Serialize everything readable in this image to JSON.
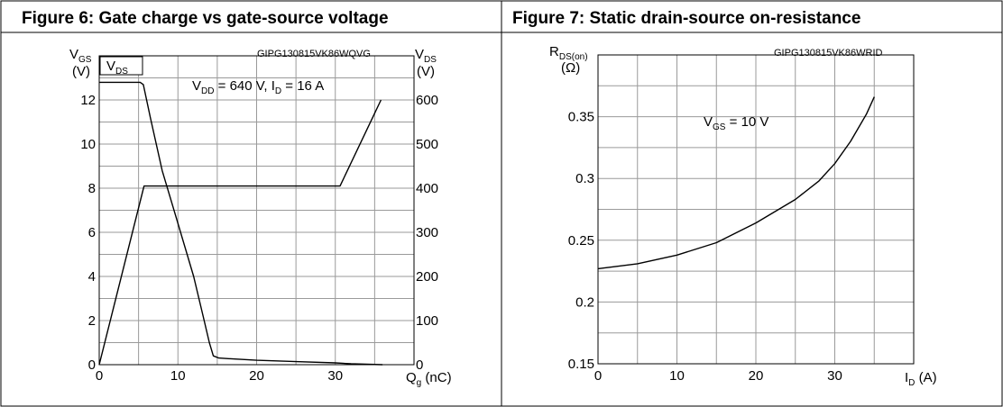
{
  "chart_data": [
    {
      "type": "line",
      "title": "Figure 6: Gate charge vs gate-source voltage",
      "code": "GIPG130815VK86WQVG",
      "annotation": "V_DD = 640 V, I_D = 16 A",
      "left_axis_label": "V_GS (V)",
      "right_axis_label": "V_DS (V)",
      "xlabel": "Q_g (nC)",
      "xlim": [
        0,
        40
      ],
      "ylim": [
        0,
        14
      ],
      "y2lim": [
        0,
        700
      ],
      "xticks": [
        "0",
        "10",
        "20",
        "30"
      ],
      "yticks": [
        "0",
        "2",
        "4",
        "6",
        "8",
        "10",
        "12"
      ],
      "y2ticks": [
        "0",
        "100",
        "200",
        "300",
        "400",
        "500",
        "600"
      ],
      "grid": true,
      "inline_series_label": "V_DS",
      "series": [
        {
          "name": "V_GS",
          "axis": "left",
          "x": [
            0,
            5.7,
            30.6,
            35.8
          ],
          "y": [
            0,
            8.1,
            8.1,
            12.0
          ]
        },
        {
          "name": "V_DS",
          "axis": "right",
          "x": [
            0,
            5.2,
            5.6,
            6.5,
            8.0,
            10.0,
            12.0,
            13.2,
            14.0,
            14.5,
            15.2,
            17.0,
            20.0,
            25.0,
            30.0,
            32.0,
            34.0,
            36.0
          ],
          "y": [
            640,
            640,
            635,
            560,
            440,
            320,
            200,
            110,
            50,
            20,
            15,
            13,
            10,
            7,
            4,
            2,
            1,
            0
          ]
        }
      ]
    },
    {
      "type": "line",
      "title": "Figure 7: Static drain-source on-resistance",
      "code": "GIPG130815VK86WRID",
      "annotation": "V_GS = 10 V",
      "ylabel_main": "R_DS(on)",
      "ylabel_unit": "(Ω)",
      "xlabel": "I_D (A)",
      "xlim": [
        0,
        40
      ],
      "ylim": [
        0.15,
        0.4
      ],
      "xticks": [
        "0",
        "10",
        "20",
        "30"
      ],
      "yticks": [
        "0.15",
        "0.2",
        "0.25",
        "0.3",
        "0.35"
      ],
      "grid": true,
      "series": [
        {
          "x": [
            0,
            5,
            10,
            15,
            20,
            25,
            28,
            30,
            32,
            34,
            35
          ],
          "y": [
            0.227,
            0.231,
            0.238,
            0.248,
            0.264,
            0.283,
            0.298,
            0.312,
            0.33,
            0.352,
            0.366
          ]
        }
      ]
    }
  ]
}
